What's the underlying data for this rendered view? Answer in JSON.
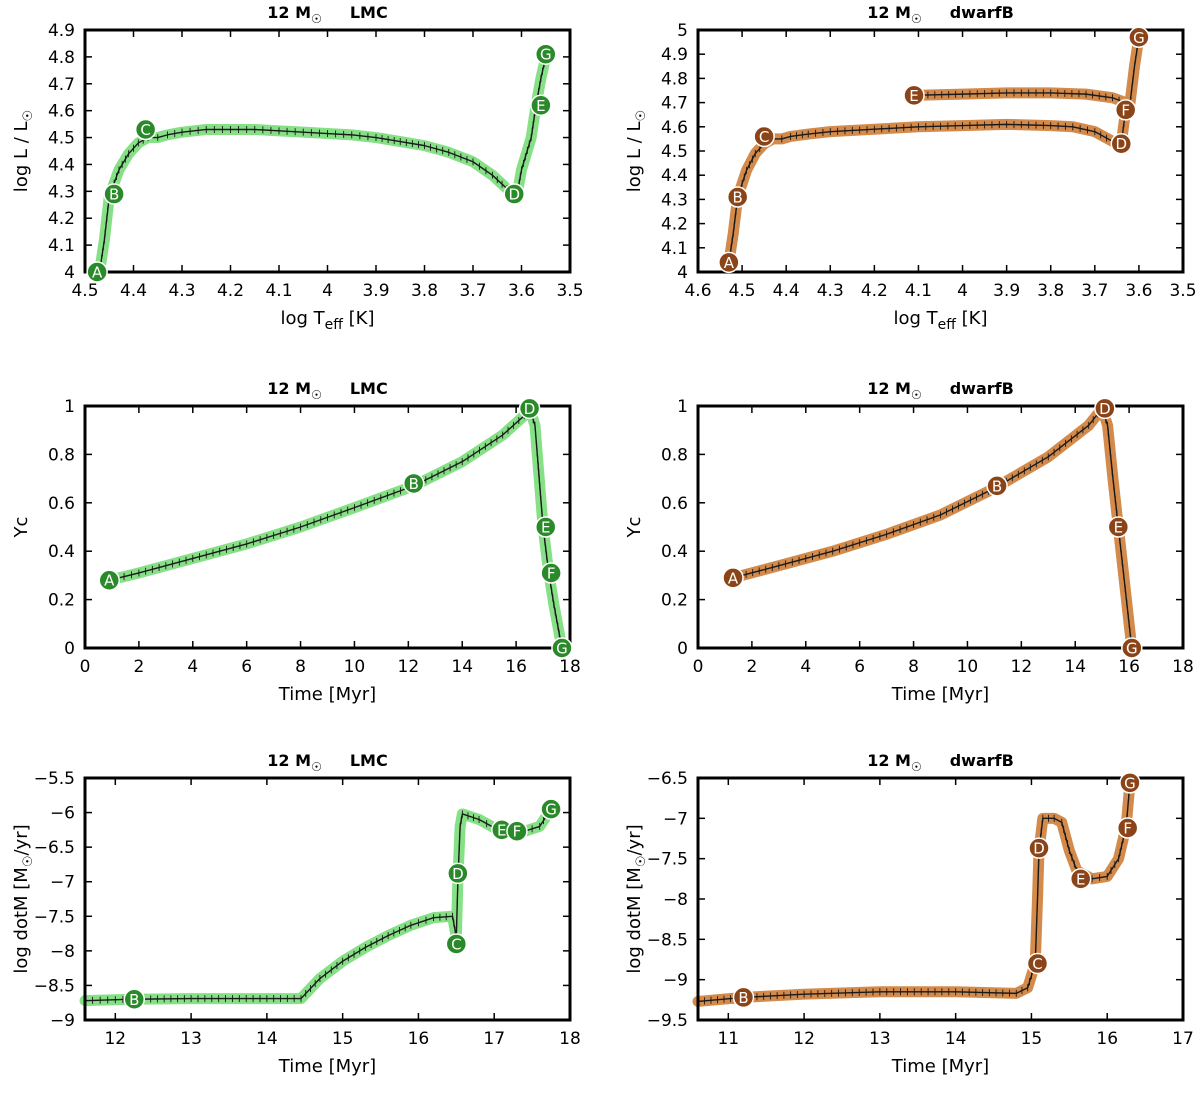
{
  "chart_data": [
    {
      "type": "line",
      "title": "12 M☉ LMC",
      "title_mass": "12 M",
      "title_sun": "☉",
      "title_env": "LMC",
      "xlabel_main": "log T",
      "xlabel_sub": "eff",
      "xlabel_unit": " [K]",
      "ylabel_main": "log L / L",
      "ylabel_sun": "☉",
      "x_reversed": true,
      "xlim": [
        3.5,
        4.5
      ],
      "ylim": [
        4.0,
        4.9
      ],
      "xticks": [
        4.5,
        4.4,
        4.3,
        4.2,
        4.1,
        4,
        3.9,
        3.8,
        3.7,
        3.6,
        3.5
      ],
      "yticks": [
        4,
        4.1,
        4.2,
        4.3,
        4.4,
        4.5,
        4.6,
        4.7,
        4.8,
        4.9
      ],
      "color": "#86e086",
      "marker_color": "#2a8a2a",
      "series": [
        {
          "x": [
            4.47,
            4.46,
            4.45,
            4.43,
            4.41,
            4.39,
            4.37,
            4.35,
            4.33,
            4.3,
            4.25,
            4.2,
            4.15,
            4.1,
            4.05,
            4.0,
            3.95,
            3.9,
            3.85,
            3.8,
            3.75,
            3.7,
            3.66,
            3.63,
            3.61,
            3.6,
            3.58,
            3.57,
            3.56,
            3.55
          ],
          "y": [
            4.0,
            4.12,
            4.28,
            4.38,
            4.44,
            4.48,
            4.5,
            4.5,
            4.51,
            4.52,
            4.53,
            4.53,
            4.53,
            4.525,
            4.52,
            4.515,
            4.51,
            4.5,
            4.485,
            4.47,
            4.445,
            4.41,
            4.36,
            4.31,
            4.28,
            4.38,
            4.5,
            4.62,
            4.72,
            4.8
          ]
        }
      ],
      "markers": [
        {
          "label": "A",
          "x": 4.475,
          "y": 4.0
        },
        {
          "label": "B",
          "x": 4.44,
          "y": 4.29
        },
        {
          "label": "C",
          "x": 4.375,
          "y": 4.53
        },
        {
          "label": "D",
          "x": 3.615,
          "y": 4.29
        },
        {
          "label": "E",
          "x": 3.56,
          "y": 4.62
        },
        {
          "label": "G",
          "x": 3.55,
          "y": 4.81
        }
      ]
    },
    {
      "type": "line",
      "title": "12 M☉ dwarfB",
      "title_mass": "12 M",
      "title_sun": "☉",
      "title_env": "dwarfB",
      "xlabel_main": "log T",
      "xlabel_sub": "eff",
      "xlabel_unit": " [K]",
      "ylabel_main": "log L / L",
      "ylabel_sun": "☉",
      "x_reversed": true,
      "xlim": [
        3.5,
        4.6
      ],
      "ylim": [
        4.0,
        5.0
      ],
      "xticks": [
        4.6,
        4.5,
        4.4,
        4.3,
        4.2,
        4.1,
        4,
        3.9,
        3.8,
        3.7,
        3.6,
        3.5
      ],
      "yticks": [
        4,
        4.1,
        4.2,
        4.3,
        4.4,
        4.5,
        4.6,
        4.7,
        4.8,
        4.9,
        5
      ],
      "color": "#d38a4a",
      "marker_color": "#8a4417",
      "series": [
        {
          "x": [
            4.53,
            4.52,
            4.51,
            4.49,
            4.47,
            4.45,
            4.43,
            4.41,
            4.39,
            4.35,
            4.3,
            4.2,
            4.1,
            4.0,
            3.9,
            3.8,
            3.75,
            3.7,
            3.66,
            3.64,
            3.63,
            3.62,
            3.61,
            3.6
          ],
          "y": [
            4.04,
            4.16,
            4.31,
            4.42,
            4.49,
            4.53,
            4.55,
            4.55,
            4.56,
            4.57,
            4.58,
            4.59,
            4.6,
            4.605,
            4.61,
            4.605,
            4.6,
            4.58,
            4.54,
            4.53,
            4.67,
            4.7,
            4.85,
            4.97
          ]
        },
        {
          "x": [
            4.11,
            4.0,
            3.9,
            3.8,
            3.72,
            3.66,
            3.63
          ],
          "y": [
            4.73,
            4.735,
            4.74,
            4.74,
            4.735,
            4.72,
            4.7
          ]
        }
      ],
      "markers": [
        {
          "label": "A",
          "x": 4.53,
          "y": 4.04
        },
        {
          "label": "B",
          "x": 4.51,
          "y": 4.31
        },
        {
          "label": "C",
          "x": 4.45,
          "y": 4.56
        },
        {
          "label": "D",
          "x": 3.64,
          "y": 4.53
        },
        {
          "label": "E",
          "x": 4.11,
          "y": 4.73
        },
        {
          "label": "F",
          "x": 3.63,
          "y": 4.67
        },
        {
          "label": "G",
          "x": 3.6,
          "y": 4.97
        }
      ]
    },
    {
      "type": "line",
      "title": "12 M☉ LMC",
      "title_mass": "12 M",
      "title_sun": "☉",
      "title_env": "LMC",
      "xlabel_main": "Time [Myr]",
      "xlabel_sub": "",
      "xlabel_unit": "",
      "ylabel_main": "Yc",
      "ylabel_sun": "",
      "x_reversed": false,
      "xlim": [
        0,
        18
      ],
      "ylim": [
        0,
        1
      ],
      "xticks": [
        0,
        2,
        4,
        6,
        8,
        10,
        12,
        14,
        16,
        18
      ],
      "yticks": [
        0,
        0.2,
        0.4,
        0.6,
        0.8,
        1
      ],
      "color": "#86e086",
      "marker_color": "#2a8a2a",
      "series": [
        {
          "x": [
            0.9,
            2,
            4,
            6,
            8,
            10,
            12.2,
            14,
            15.5,
            16.3,
            16.5,
            16.7,
            17.0,
            17.2,
            17.4,
            17.6,
            17.7
          ],
          "y": [
            0.28,
            0.31,
            0.37,
            0.43,
            0.5,
            0.58,
            0.67,
            0.77,
            0.88,
            0.96,
            0.99,
            0.92,
            0.5,
            0.32,
            0.18,
            0.06,
            0.0
          ]
        }
      ],
      "markers": [
        {
          "label": "A",
          "x": 0.9,
          "y": 0.28
        },
        {
          "label": "B",
          "x": 12.2,
          "y": 0.68
        },
        {
          "label": "D",
          "x": 16.5,
          "y": 0.99
        },
        {
          "label": "E",
          "x": 17.1,
          "y": 0.5
        },
        {
          "label": "F",
          "x": 17.3,
          "y": 0.31
        },
        {
          "label": "G",
          "x": 17.7,
          "y": 0.0
        }
      ]
    },
    {
      "type": "line",
      "title": "12 M☉ dwarfB",
      "title_mass": "12 M",
      "title_sun": "☉",
      "title_env": "dwarfB",
      "xlabel_main": "Time [Myr]",
      "xlabel_sub": "",
      "xlabel_unit": "",
      "ylabel_main": "Yc",
      "ylabel_sun": "",
      "x_reversed": false,
      "xlim": [
        0,
        18
      ],
      "ylim": [
        0,
        1
      ],
      "xticks": [
        0,
        2,
        4,
        6,
        8,
        10,
        12,
        14,
        16,
        18
      ],
      "yticks": [
        0,
        0.2,
        0.4,
        0.6,
        0.8,
        1
      ],
      "color": "#d38a4a",
      "marker_color": "#8a4417",
      "series": [
        {
          "x": [
            1.3,
            3,
            5,
            7,
            9,
            11,
            13,
            14.5,
            15.0,
            15.2,
            15.4,
            15.6,
            15.8,
            16.0,
            16.1
          ],
          "y": [
            0.29,
            0.34,
            0.4,
            0.47,
            0.55,
            0.66,
            0.79,
            0.92,
            0.99,
            0.92,
            0.7,
            0.5,
            0.3,
            0.1,
            0.0
          ]
        }
      ],
      "markers": [
        {
          "label": "A",
          "x": 1.3,
          "y": 0.29
        },
        {
          "label": "B",
          "x": 11.1,
          "y": 0.67
        },
        {
          "label": "D",
          "x": 15.1,
          "y": 0.99
        },
        {
          "label": "E",
          "x": 15.6,
          "y": 0.5
        },
        {
          "label": "G",
          "x": 16.1,
          "y": 0.0
        }
      ]
    },
    {
      "type": "line",
      "title": "12 M☉ LMC",
      "title_mass": "12 M",
      "title_sun": "☉",
      "title_env": "LMC",
      "xlabel_main": "Time [Myr]",
      "xlabel_sub": "",
      "xlabel_unit": "",
      "ylabel_main": "log dotM [M",
      "ylabel_sun": "☉",
      "ylabel_after": "/yr]",
      "x_reversed": false,
      "xlim": [
        11.6,
        18
      ],
      "ylim": [
        -9,
        -5.5
      ],
      "xticks": [
        12,
        13,
        14,
        15,
        16,
        17,
        18
      ],
      "yticks": [
        -9,
        -8.5,
        -8,
        -7.5,
        -7,
        -6.5,
        -6,
        -5.5
      ],
      "color": "#86e086",
      "marker_color": "#2a8a2a",
      "series": [
        {
          "x": [
            11.6,
            12.2,
            13,
            14,
            14.45,
            14.7,
            15.0,
            15.3,
            15.6,
            15.9,
            16.2,
            16.45,
            16.5,
            16.52,
            16.55,
            16.58,
            16.8,
            17.0,
            17.2,
            17.4,
            17.6,
            17.75
          ],
          "y": [
            -8.72,
            -8.7,
            -8.69,
            -8.69,
            -8.69,
            -8.4,
            -8.15,
            -7.95,
            -7.78,
            -7.63,
            -7.52,
            -7.5,
            -7.8,
            -7.0,
            -6.2,
            -6.02,
            -6.1,
            -6.22,
            -6.28,
            -6.27,
            -6.2,
            -5.95
          ]
        }
      ],
      "markers": [
        {
          "label": "B",
          "x": 12.25,
          "y": -8.7
        },
        {
          "label": "C",
          "x": 16.5,
          "y": -7.9
        },
        {
          "label": "D",
          "x": 16.52,
          "y": -6.88
        },
        {
          "label": "E",
          "x": 17.1,
          "y": -6.25
        },
        {
          "label": "F",
          "x": 17.3,
          "y": -6.27
        },
        {
          "label": "G",
          "x": 17.75,
          "y": -5.95
        }
      ]
    },
    {
      "type": "line",
      "title": "12 M☉ dwarfB",
      "title_mass": "12 M",
      "title_sun": "☉",
      "title_env": "dwarfB",
      "xlabel_main": "Time [Myr]",
      "xlabel_sub": "",
      "xlabel_unit": "",
      "ylabel_main": "log dotM [M",
      "ylabel_sun": "☉",
      "ylabel_after": "/yr]",
      "x_reversed": false,
      "xlim": [
        10.6,
        17
      ],
      "ylim": [
        -9.5,
        -6.5
      ],
      "xticks": [
        11,
        12,
        13,
        14,
        15,
        16,
        17
      ],
      "yticks": [
        -9.5,
        -9,
        -8.5,
        -8,
        -7.5,
        -7,
        -6.5
      ],
      "color": "#d38a4a",
      "marker_color": "#8a4417",
      "series": [
        {
          "x": [
            10.6,
            11.2,
            12,
            13,
            14,
            14.8,
            14.95,
            15.05,
            15.08,
            15.1,
            15.15,
            15.3,
            15.4,
            15.5,
            15.6,
            15.8,
            16.0,
            16.15,
            16.25,
            16.3
          ],
          "y": [
            -9.27,
            -9.22,
            -9.18,
            -9.15,
            -9.15,
            -9.17,
            -9.1,
            -8.8,
            -8.0,
            -7.4,
            -7.0,
            -7.0,
            -7.05,
            -7.4,
            -7.65,
            -7.75,
            -7.72,
            -7.5,
            -7.1,
            -6.56
          ]
        }
      ],
      "markers": [
        {
          "label": "B",
          "x": 11.2,
          "y": -9.22
        },
        {
          "label": "C",
          "x": 15.08,
          "y": -8.8
        },
        {
          "label": "D",
          "x": 15.1,
          "y": -7.37
        },
        {
          "label": "E",
          "x": 15.65,
          "y": -7.75
        },
        {
          "label": "F",
          "x": 16.27,
          "y": -7.12
        },
        {
          "label": "G",
          "x": 16.3,
          "y": -6.56
        }
      ]
    }
  ]
}
